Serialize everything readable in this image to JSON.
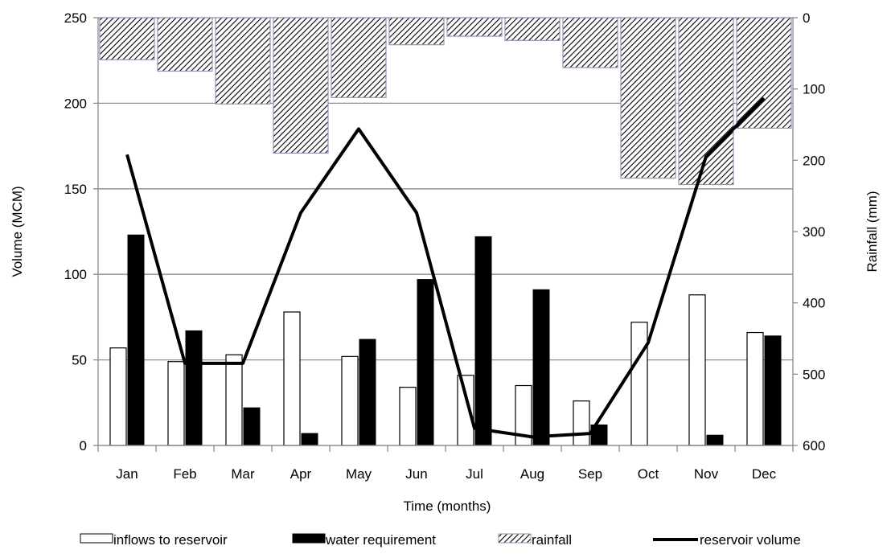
{
  "chart_data": {
    "type": "bar",
    "categories": [
      "Jan",
      "Feb",
      "Mar",
      "Apr",
      "May",
      "Jun",
      "Jul",
      "Aug",
      "Sep",
      "Oct",
      "Nov",
      "Dec"
    ],
    "xlabel": "Time (months)",
    "ylabel": "Volume (MCM)",
    "y2label": "Rainfall (mm)",
    "ylim": [
      0,
      250
    ],
    "y2lim": [
      0,
      600
    ],
    "y2_inverted": true,
    "yticks": [
      0,
      50,
      100,
      150,
      200,
      250
    ],
    "y2ticks": [
      0,
      100,
      200,
      300,
      400,
      500,
      600
    ],
    "grid": true,
    "legend_position": "bottom",
    "series": [
      {
        "name": "inflows to reservoir",
        "kind": "bar",
        "axis": "left",
        "color": "#ffffff",
        "values": [
          57,
          49,
          53,
          78,
          52,
          34,
          41,
          35,
          26,
          72,
          88,
          66
        ]
      },
      {
        "name": "water  requirement",
        "kind": "bar",
        "axis": "left",
        "color": "#000000",
        "values": [
          123,
          67,
          22,
          7,
          62,
          97,
          122,
          91,
          12,
          0,
          6,
          64
        ]
      },
      {
        "name": "rainfall",
        "kind": "hatched-bar",
        "axis": "right",
        "color": "#9c8fb8",
        "values": [
          59,
          75,
          121,
          190,
          112,
          38,
          26,
          32,
          70,
          225,
          234,
          155
        ]
      },
      {
        "name": "reservoir volume",
        "kind": "line",
        "axis": "left",
        "color": "#000000",
        "values": [
          170,
          48,
          48,
          136,
          185,
          136,
          10,
          5,
          7,
          60,
          169,
          203
        ]
      }
    ]
  }
}
